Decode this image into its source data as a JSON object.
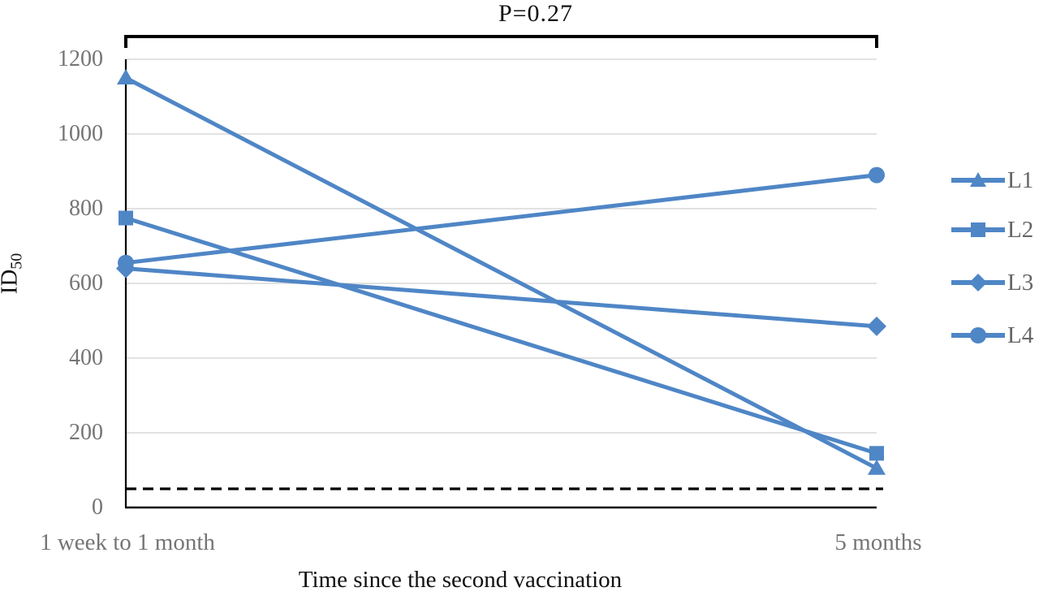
{
  "chart_data": {
    "type": "line",
    "title": "P=0.27",
    "xlabel": "Time since the second vaccination",
    "ylabel": "ID50",
    "ylabel_main": "ID",
    "ylabel_sub": "50",
    "categories": [
      "1 week to 1 month",
      "5 months"
    ],
    "series": [
      {
        "name": "L1",
        "marker": "triangle",
        "values": [
          1150,
          105
        ]
      },
      {
        "name": "L2",
        "marker": "square",
        "values": [
          775,
          145
        ]
      },
      {
        "name": "L3",
        "marker": "diamond",
        "values": [
          640,
          485
        ]
      },
      {
        "name": "L4",
        "marker": "circle",
        "values": [
          655,
          890
        ]
      }
    ],
    "ylim": [
      0,
      1200
    ],
    "yticks": [
      0,
      200,
      400,
      600,
      800,
      1000,
      1200
    ],
    "grid": true,
    "legend_position": "right",
    "threshold_line": {
      "value": 50,
      "style": "dashed",
      "color": "#000000"
    },
    "significance_bracket": {
      "label": "P=0.27",
      "from_category": "1 week to 1 month",
      "to_category": "5 months"
    },
    "colors": {
      "series_line": "#4F86C6",
      "gridline": "#D9D9D9",
      "axis_line": "#000000",
      "tick_text": "#757575",
      "title_text": "#111111"
    }
  }
}
